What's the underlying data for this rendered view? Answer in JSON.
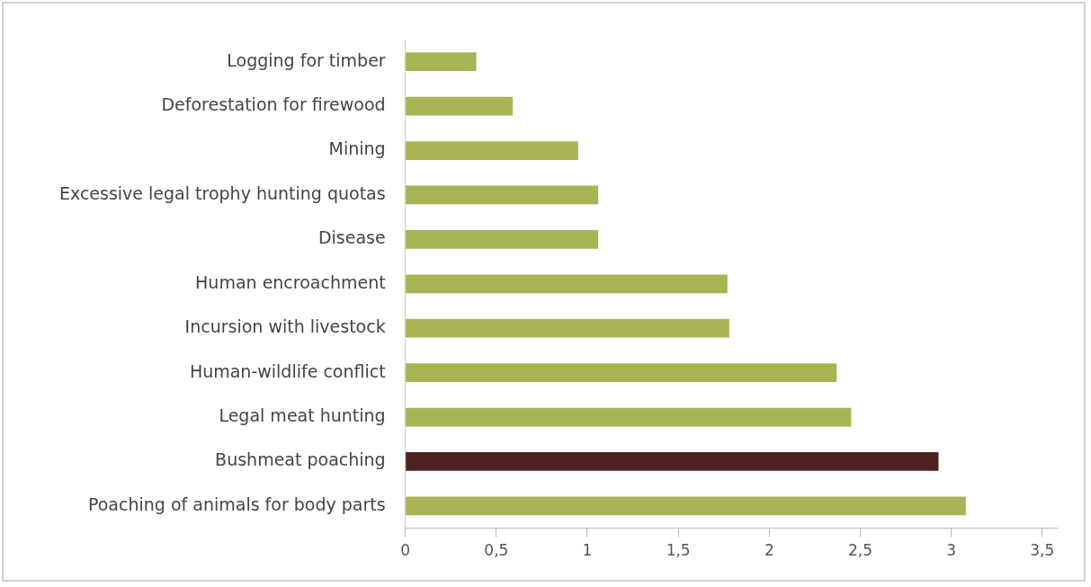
{
  "chart_data": {
    "type": "bar",
    "orientation": "horizontal",
    "categories": [
      "Logging for timber",
      "Deforestation for firewood",
      "Mining",
      "Excessive legal trophy hunting quotas",
      "Disease",
      "Human encroachment",
      "Incursion with livestock",
      "Human-wildlife conflict",
      "Legal meat hunting",
      "Bushmeat poaching",
      "Poaching of animals for body parts"
    ],
    "values": [
      0.39,
      0.59,
      0.95,
      1.06,
      1.06,
      1.77,
      1.78,
      2.37,
      2.45,
      2.93,
      3.08
    ],
    "colors": [
      "#a9b455",
      "#a9b455",
      "#a9b455",
      "#a9b455",
      "#a9b455",
      "#a9b455",
      "#a9b455",
      "#a9b455",
      "#a9b455",
      "#4f2220",
      "#a9b455"
    ],
    "xlim": [
      0,
      3.58
    ],
    "xticks": [
      0,
      {
        "value": 0.5,
        "label": "0,5"
      },
      1,
      {
        "value": 1.5,
        "label": "1,5"
      },
      2,
      {
        "value": 2.5,
        "label": "2,5"
      },
      3,
      {
        "value": 3.5,
        "label": "3,5"
      }
    ],
    "grid": false,
    "legend": false
  }
}
